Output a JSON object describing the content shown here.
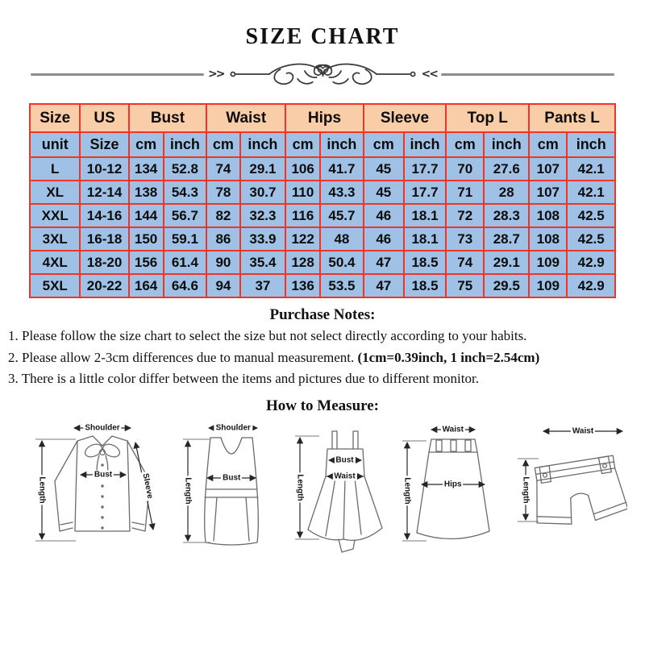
{
  "title": "SIZE CHART",
  "divider": {
    "left_mark": ">>",
    "right_mark": "<<"
  },
  "size_table": {
    "colors": {
      "header_bg": "#f9cda8",
      "body_bg": "#a0c1e6",
      "border": "#f23427"
    },
    "group_headers": [
      {
        "label": "Size",
        "span": 1
      },
      {
        "label": "US",
        "span": 1
      },
      {
        "label": "Bust",
        "span": 2
      },
      {
        "label": "Waist",
        "span": 2
      },
      {
        "label": "Hips",
        "span": 2
      },
      {
        "label": "Sleeve",
        "span": 2
      },
      {
        "label": "Top L",
        "span": 2
      },
      {
        "label": "Pants L",
        "span": 2
      }
    ],
    "unit_row": [
      "unit",
      "Size",
      "cm",
      "inch",
      "cm",
      "inch",
      "cm",
      "inch",
      "cm",
      "inch",
      "cm",
      "inch",
      "cm",
      "inch"
    ]
  },
  "chart_data": {
    "type": "table",
    "title": "SIZE CHART",
    "columns": [
      "Size",
      "US Size",
      "Bust cm",
      "Bust inch",
      "Waist cm",
      "Waist inch",
      "Hips cm",
      "Hips inch",
      "Sleeve cm",
      "Sleeve inch",
      "Top L cm",
      "Top L inch",
      "Pants L cm",
      "Pants L inch"
    ],
    "rows": [
      [
        "L",
        "10-12",
        "134",
        "52.8",
        "74",
        "29.1",
        "106",
        "41.7",
        "45",
        "17.7",
        "70",
        "27.6",
        "107",
        "42.1"
      ],
      [
        "XL",
        "12-14",
        "138",
        "54.3",
        "78",
        "30.7",
        "110",
        "43.3",
        "45",
        "17.7",
        "71",
        "28",
        "107",
        "42.1"
      ],
      [
        "XXL",
        "14-16",
        "144",
        "56.7",
        "82",
        "32.3",
        "116",
        "45.7",
        "46",
        "18.1",
        "72",
        "28.3",
        "108",
        "42.5"
      ],
      [
        "3XL",
        "16-18",
        "150",
        "59.1",
        "86",
        "33.9",
        "122",
        "48",
        "46",
        "18.1",
        "73",
        "28.7",
        "108",
        "42.5"
      ],
      [
        "4XL",
        "18-20",
        "156",
        "61.4",
        "90",
        "35.4",
        "128",
        "50.4",
        "47",
        "18.5",
        "74",
        "29.1",
        "109",
        "42.9"
      ],
      [
        "5XL",
        "20-22",
        "164",
        "64.6",
        "94",
        "37",
        "136",
        "53.5",
        "47",
        "18.5",
        "75",
        "29.5",
        "109",
        "42.9"
      ]
    ]
  },
  "purchase_notes": {
    "heading": "Purchase Notes:",
    "note1": "1. Please follow the size chart to select the size but not select directly according to your habits.",
    "note2_normal": "2. Please allow 2-3cm differences due to manual measurement. ",
    "note2_bold": "(1cm=0.39inch, 1 inch=2.54cm)",
    "note3": "3. There is a little color differ between the items and pictures due to different monitor."
  },
  "how_to_measure": {
    "heading": "How to Measure:",
    "figures": [
      {
        "name": "blouse",
        "labels": {
          "shoulder": "Shoulder",
          "length": "Length",
          "bust": "Bust",
          "sleeve": "Sleeve"
        }
      },
      {
        "name": "vest-top",
        "labels": {
          "shoulder": "Shoulder",
          "length": "Length",
          "bust": "Bust"
        }
      },
      {
        "name": "dress",
        "labels": {
          "length": "Length",
          "bust": "Bust",
          "waist": "Waist"
        }
      },
      {
        "name": "skirt",
        "labels": {
          "waist": "Waist",
          "length": "Length",
          "hips": "Hips"
        }
      },
      {
        "name": "shorts",
        "labels": {
          "waist": "Waist",
          "length": "Length"
        }
      }
    ]
  }
}
